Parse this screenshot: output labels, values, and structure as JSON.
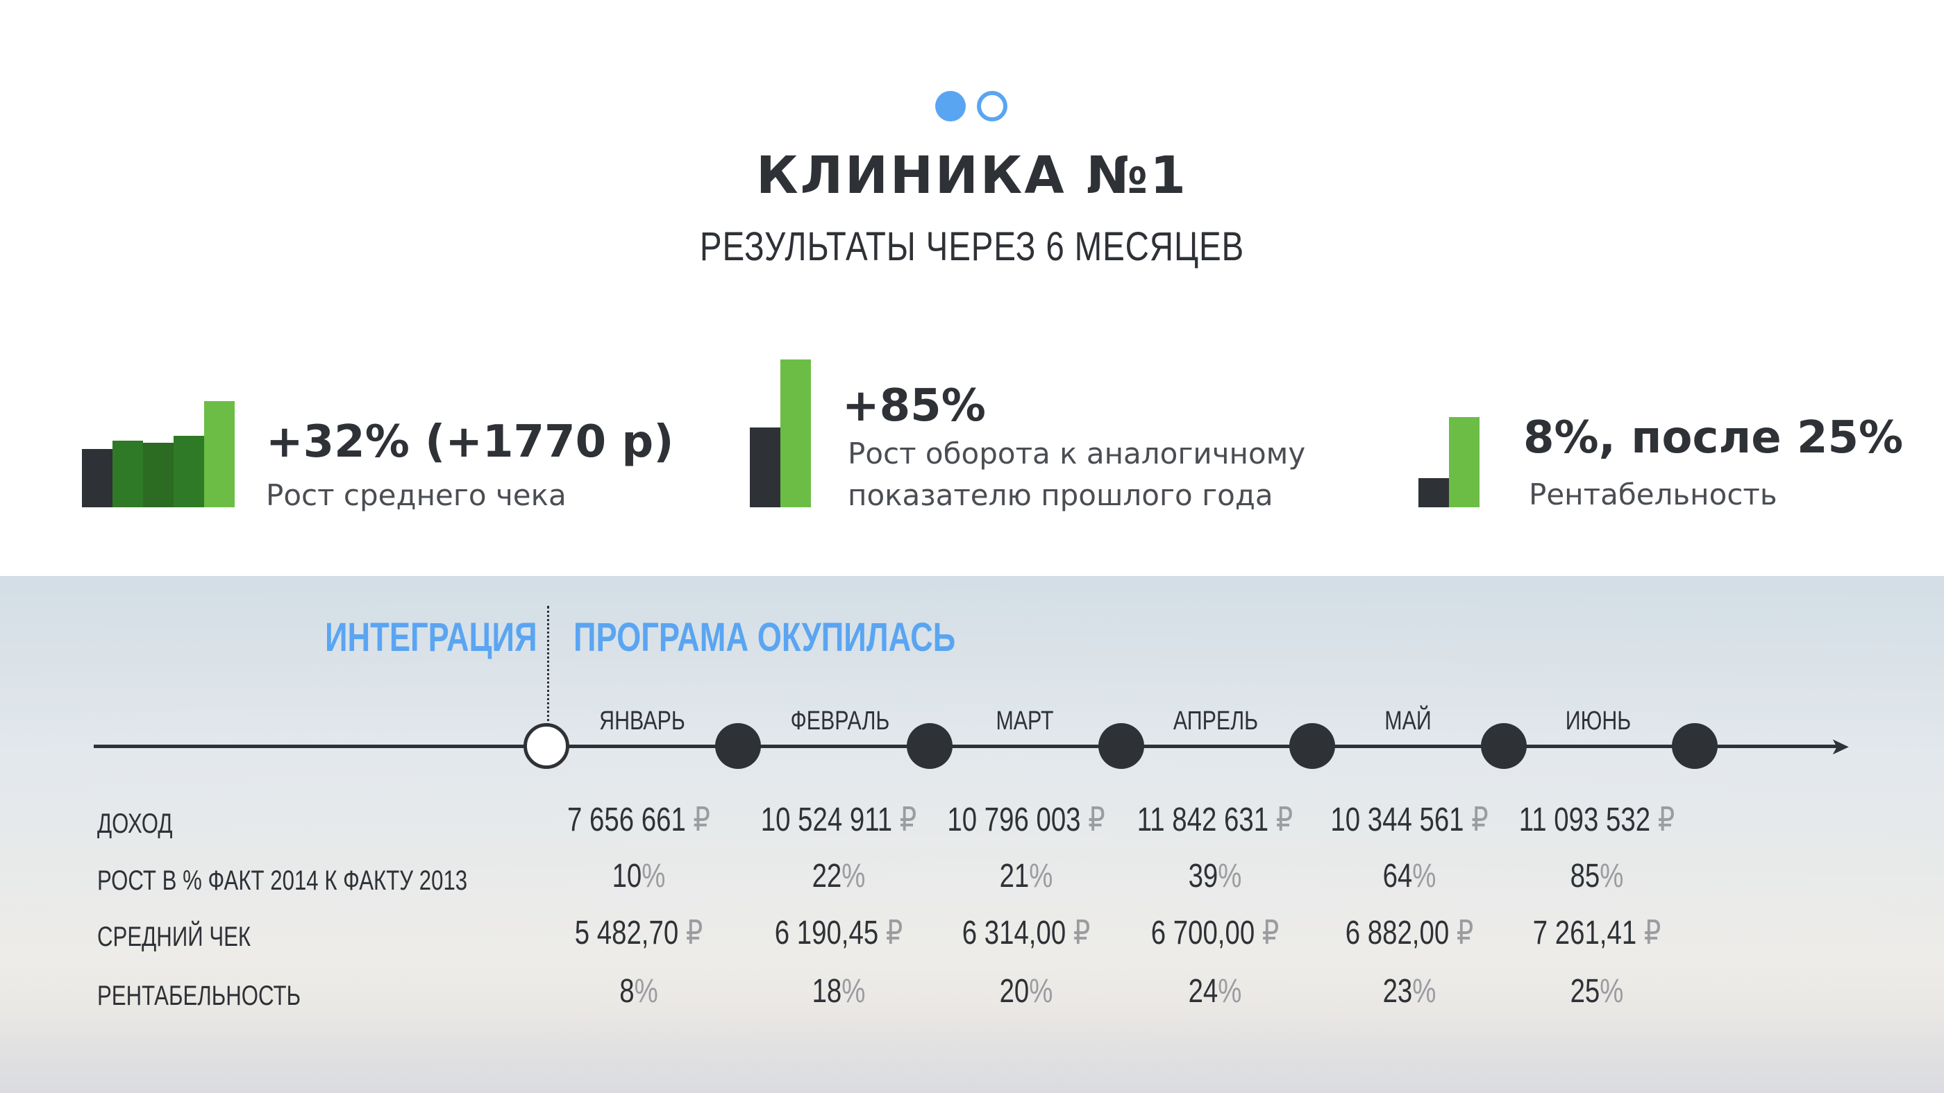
{
  "pager": {
    "active_index": 0,
    "count": 2
  },
  "header": {
    "title": "КЛИНИКА №1",
    "subtitle": "РЕЗУЛЬТАТЫ ЧЕРЕЗ 6 МЕСЯЦЕВ"
  },
  "stats": [
    {
      "value": "+32% (+1770 р)",
      "label_lines": [
        "Рост среднего чека"
      ]
    },
    {
      "value": "+85%",
      "label_lines": [
        "Рост оборота к аналогичному",
        "показателю прошлого года"
      ]
    },
    {
      "value": "8%, после 25%",
      "label_lines": [
        "Рентабельность"
      ]
    }
  ],
  "chart_data": [
    {
      "type": "bar",
      "values": [
        55,
        63,
        61,
        67,
        100
      ],
      "colors": [
        "#2e3136",
        "#2f7a26",
        "#2c6b22",
        "#2f7a26",
        "#6cbd45"
      ]
    },
    {
      "type": "bar",
      "values": [
        54,
        100
      ],
      "colors": [
        "#2e3136",
        "#6cbd45"
      ]
    },
    {
      "type": "bar",
      "values": [
        32,
        100
      ],
      "colors": [
        "#2e3136",
        "#6cbd45"
      ]
    }
  ],
  "timeline": {
    "phase_left": "ИНТЕГРАЦИЯ",
    "phase_right": "ПРОГРАМА ОКУПИЛАСЬ",
    "months": [
      "ЯНВАРЬ",
      "ФЕВРАЛЬ",
      "МАРТ",
      "АПРЕЛЬ",
      "МАЙ",
      "ИЮНЬ"
    ]
  },
  "table": {
    "currency_symbol": "₽",
    "percent_symbol": "%",
    "rows": [
      {
        "label": "ДОХОД",
        "unit": "₽",
        "values": [
          "7 656 661",
          "10 524 911",
          "10 796 003",
          "11 842 631",
          "10 344 561",
          "11 093 532"
        ]
      },
      {
        "label": "РОСТ В % ФАКТ 2014 К ФАКТУ 2013",
        "unit": "%",
        "values": [
          "10",
          "22",
          "21",
          "39",
          "64",
          "85"
        ]
      },
      {
        "label": "СРЕДНИЙ ЧЕК",
        "unit": "₽",
        "values": [
          "5 482,70",
          "6 190,45",
          "6 314,00",
          "6 700,00",
          "6 882,00",
          "7 261,41"
        ]
      },
      {
        "label": "РЕНТАБЕЛЬНОСТЬ",
        "unit": "%",
        "values": [
          "8",
          "18",
          "20",
          "24",
          "23",
          "25"
        ]
      }
    ]
  },
  "colors": {
    "accent_blue": "#5aa5f2",
    "dark": "#2e3136",
    "green_light": "#6cbd45",
    "green_dark": "#2f7a26",
    "unit_gray": "#9a9ca0"
  }
}
